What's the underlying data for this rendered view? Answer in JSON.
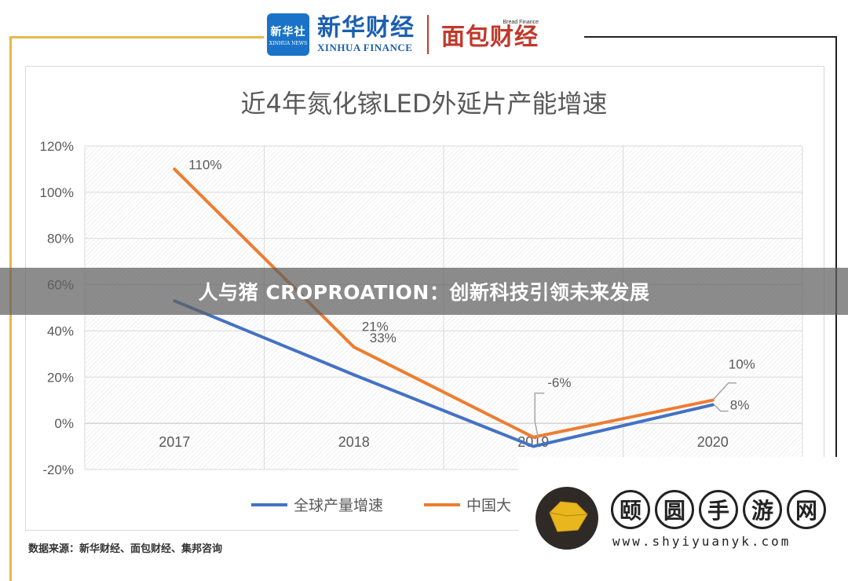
{
  "header": {
    "xinhua_badge_line1": "新华社",
    "xinhua_badge_line2": "XINHUA NEWS",
    "xinhua_finance_cn": "新华财经",
    "xinhua_finance_en": "XINHUA FINANCE",
    "bread_finance_small": "Bread Finance",
    "bread_finance_cn": "面包财经"
  },
  "banner": {
    "text": "人与猪 CROPROATION：创新科技引领未来发展"
  },
  "source": {
    "text": "数据来源：新华财经、面包财经、集邦咨询"
  },
  "watermark": {
    "chars": [
      "颐",
      "圆",
      "手",
      "游",
      "网"
    ],
    "url": "www.shyiyuanyk.com"
  },
  "chart_data": {
    "type": "line",
    "title": "近4年氮化镓LED外延片产能增速",
    "categories": [
      "2017",
      "2018",
      "2019",
      "2020"
    ],
    "ylim": [
      -20,
      120
    ],
    "yticks": [
      "120%",
      "100%",
      "80%",
      "60%",
      "40%",
      "20%",
      "0%",
      "-20%"
    ],
    "ytick_values": [
      120,
      100,
      80,
      60,
      40,
      20,
      0,
      -20
    ],
    "grid": true,
    "legend_position": "bottom",
    "series": [
      {
        "name": "全球产量增速",
        "color": "#4472c4",
        "values": [
          53,
          21,
          -10,
          8
        ],
        "labels": [
          "",
          "21%",
          "",
          "8%"
        ]
      },
      {
        "name": "中国大",
        "color": "#ed7d31",
        "values": [
          110,
          33,
          -6,
          10
        ],
        "labels": [
          "110%",
          "33%",
          "-6%",
          "10%"
        ]
      }
    ]
  }
}
